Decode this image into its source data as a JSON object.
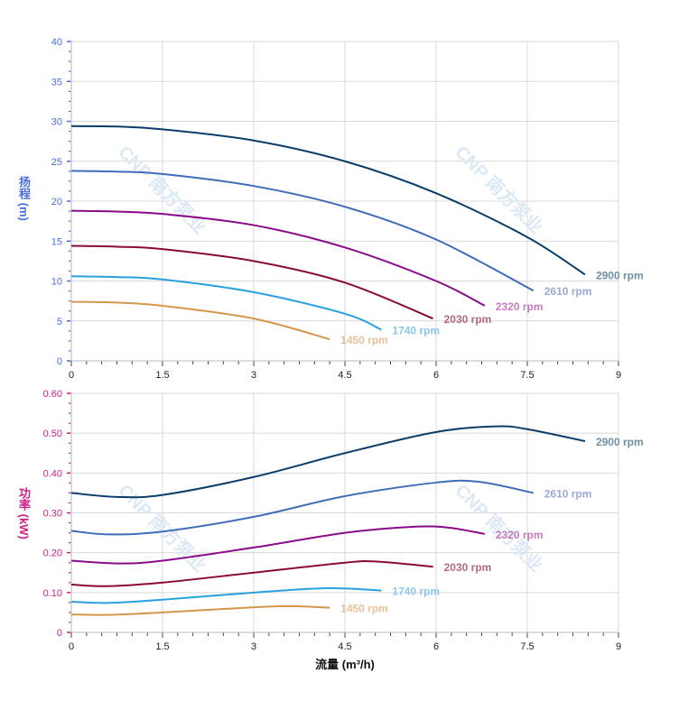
{
  "chart_data": [
    {
      "type": "line",
      "ylabel": "扬程 (m)",
      "ylim": [
        0,
        40
      ],
      "yticks": [
        0,
        5,
        10,
        15,
        20,
        25,
        30,
        35,
        40
      ],
      "xlim": [
        0,
        9
      ],
      "xticks": [
        "0",
        "1.5",
        "3",
        "4.5",
        "6",
        "7.5",
        "9"
      ],
      "grid": true,
      "axis_color": "#4a6ee0",
      "series": [
        {
          "name": "2900 rpm",
          "color": "#0b3d6b",
          "label_color": "#6f8fa8",
          "x": [
            0,
            0.75,
            1.5,
            3,
            4.5,
            6,
            7.5,
            8.45
          ],
          "y": [
            29.4,
            29.35,
            29.0,
            27.6,
            25.0,
            21.0,
            15.5,
            10.8
          ]
        },
        {
          "name": "2610 rpm",
          "color": "#3f6cb8",
          "label_color": "#9aa9d8",
          "x": [
            0,
            0.75,
            1.5,
            3,
            4.5,
            6,
            7.6
          ],
          "y": [
            23.8,
            23.7,
            23.4,
            21.9,
            19.3,
            15.2,
            8.8
          ]
        },
        {
          "name": "2320 rpm",
          "color": "#8a0a8a",
          "label_color": "#c77bbf",
          "x": [
            0,
            0.75,
            1.5,
            3,
            4.5,
            6,
            6.8
          ],
          "y": [
            18.8,
            18.7,
            18.4,
            17.0,
            14.2,
            10.0,
            6.9
          ]
        },
        {
          "name": "2030 rpm",
          "color": "#8b0a35",
          "label_color": "#b36a7a",
          "x": [
            0,
            0.75,
            1.5,
            3,
            4.5,
            5.95
          ],
          "y": [
            14.4,
            14.3,
            14.0,
            12.5,
            9.8,
            5.3
          ]
        },
        {
          "name": "1740 rpm",
          "color": "#2aa1df",
          "label_color": "#8cc7ee",
          "x": [
            0,
            0.75,
            1.5,
            3,
            4.5,
            5.1
          ],
          "y": [
            10.6,
            10.5,
            10.2,
            8.6,
            5.9,
            3.9
          ]
        },
        {
          "name": "1450 rpm",
          "color": "#d4964a",
          "label_color": "#e8c19a",
          "x": [
            0,
            0.75,
            1.5,
            3,
            4.25
          ],
          "y": [
            7.4,
            7.3,
            6.9,
            5.3,
            2.7
          ]
        }
      ]
    },
    {
      "type": "line",
      "ylabel": "功率 (kW)",
      "xlabel": "流量 (m³/h)",
      "ylim": [
        0,
        0.6
      ],
      "yticks": [
        "0",
        "0.10",
        "0.20",
        "0.30",
        "0.40",
        "0.50",
        "0.60"
      ],
      "xlim": [
        0,
        9
      ],
      "xticks": [
        "0",
        "1.5",
        "3",
        "4.5",
        "6",
        "7.5",
        "9"
      ],
      "grid": true,
      "axis_color": "#cc2288",
      "series": [
        {
          "name": "2900 rpm",
          "color": "#0b3d6b",
          "label_color": "#6f8fa8",
          "x": [
            0,
            0.75,
            1.5,
            3,
            4.5,
            6,
            7,
            7.5,
            8.45
          ],
          "y": [
            0.35,
            0.34,
            0.345,
            0.39,
            0.45,
            0.503,
            0.517,
            0.51,
            0.48
          ]
        },
        {
          "name": "2610 rpm",
          "color": "#3f6cb8",
          "label_color": "#9aa9d8",
          "x": [
            0,
            0.6,
            1.5,
            3,
            4.5,
            6,
            6.7,
            7.6
          ],
          "y": [
            0.255,
            0.246,
            0.253,
            0.29,
            0.342,
            0.376,
            0.378,
            0.35
          ]
        },
        {
          "name": "2320 rpm",
          "color": "#8a0a8a",
          "label_color": "#c77bbf",
          "x": [
            0,
            0.8,
            1.5,
            3,
            4.5,
            5.6,
            6.2,
            6.8
          ],
          "y": [
            0.18,
            0.173,
            0.18,
            0.213,
            0.25,
            0.265,
            0.263,
            0.247
          ]
        },
        {
          "name": "2030 rpm",
          "color": "#8b0a35",
          "label_color": "#b36a7a",
          "x": [
            0,
            0.6,
            1.5,
            3,
            4.5,
            5,
            5.95
          ],
          "y": [
            0.12,
            0.116,
            0.125,
            0.15,
            0.175,
            0.178,
            0.165
          ]
        },
        {
          "name": "1740 rpm",
          "color": "#2aa1df",
          "label_color": "#8cc7ee",
          "x": [
            0,
            0.6,
            1.5,
            3,
            4.2,
            5.1
          ],
          "y": [
            0.077,
            0.074,
            0.082,
            0.1,
            0.111,
            0.105
          ]
        },
        {
          "name": "1450 rpm",
          "color": "#d4964a",
          "label_color": "#e8c19a",
          "x": [
            0,
            0.6,
            1.5,
            3,
            3.6,
            4.25
          ],
          "y": [
            0.045,
            0.044,
            0.05,
            0.063,
            0.066,
            0.062
          ]
        }
      ]
    }
  ],
  "watermark": "CNP 南方泵业"
}
